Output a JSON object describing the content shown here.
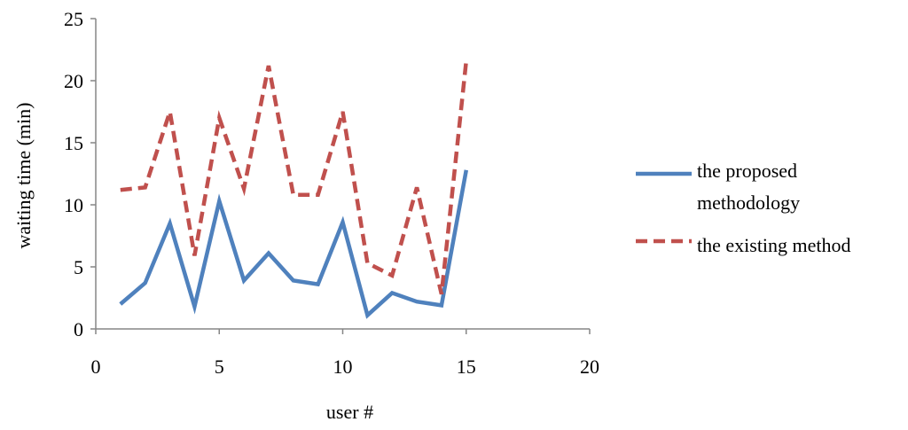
{
  "chart_data": {
    "type": "line",
    "xlabel": "user #",
    "ylabel": "waiting time (min)",
    "xlim": [
      0,
      20
    ],
    "ylim": [
      0,
      25
    ],
    "x_ticks": [
      "0",
      "5",
      "10",
      "15",
      "20"
    ],
    "y_ticks": [
      "0",
      "5",
      "10",
      "15",
      "20",
      "25"
    ],
    "x_tick_values": [
      0,
      5,
      10,
      15,
      20
    ],
    "y_tick_values": [
      0,
      5,
      10,
      15,
      20,
      25
    ],
    "grid": false,
    "legend_position": "right",
    "x": [
      1,
      2,
      3,
      4,
      5,
      6,
      7,
      8,
      9,
      10,
      11,
      12,
      13,
      14,
      15
    ],
    "series": [
      {
        "name": "the proposed methodology",
        "name_lines": [
          "the proposed",
          "methodology"
        ],
        "color": "#4F81BD",
        "dash": "solid",
        "values": [
          2.0,
          3.7,
          8.5,
          1.8,
          10.3,
          3.9,
          6.1,
          3.9,
          3.6,
          8.6,
          1.1,
          2.9,
          2.2,
          1.9,
          12.8
        ]
      },
      {
        "name": "the existing method",
        "name_lines": [
          "the existing method"
        ],
        "color": "#C0504D",
        "dash": "dashed",
        "values": [
          11.2,
          11.4,
          17.5,
          5.9,
          17.0,
          11.3,
          21.2,
          10.8,
          10.8,
          17.5,
          5.3,
          4.3,
          11.4,
          2.8,
          21.6
        ]
      }
    ]
  }
}
